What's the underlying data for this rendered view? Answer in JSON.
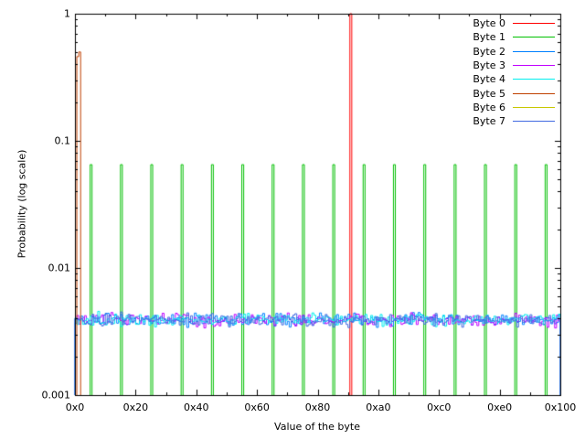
{
  "figure": {
    "background": "#ffffff",
    "border_color": "#000000",
    "text_color": "#000000"
  },
  "chart_data": {
    "type": "line",
    "style": "histogram-steps",
    "title": "",
    "xlabel": "Value of the byte",
    "ylabel": "Probability (log scale)",
    "x_range": [
      0,
      256
    ],
    "y_scale": "log",
    "y_range": [
      0.001,
      1
    ],
    "grid": "off",
    "legend_position": "top-right-inside",
    "xticks": [
      {
        "label": "0x0",
        "v": 0
      },
      {
        "label": "0x20",
        "v": 32
      },
      {
        "label": "0x40",
        "v": 64
      },
      {
        "label": "0x60",
        "v": 96
      },
      {
        "label": "0x80",
        "v": 128
      },
      {
        "label": "0xa0",
        "v": 160
      },
      {
        "label": "0xc0",
        "v": 192
      },
      {
        "label": "0xe0",
        "v": 224
      },
      {
        "label": "0x100",
        "v": 256
      }
    ],
    "x_minor_tick_step": 16,
    "yticks": [
      {
        "label": "1",
        "p": 1
      },
      {
        "label": "0.1",
        "p": 0.1
      },
      {
        "label": "0.01",
        "p": 0.01
      },
      {
        "label": "0.001",
        "p": 0.001
      }
    ],
    "y_minor_ticks": "log decades 2-9",
    "series": [
      {
        "name": "Byte 0",
        "color": "#ff0000",
        "pattern": {
          "type": "spike",
          "value": 145,
          "value_hex": "0x91",
          "probability": 1.0
        }
      },
      {
        "name": "Byte 1",
        "color": "#00c000",
        "pattern": {
          "type": "spike-train",
          "start_value": 8,
          "step": 16,
          "count": 16,
          "probability": 0.065
        }
      },
      {
        "name": "Byte 2",
        "color": "#0080ff",
        "pattern": {
          "type": "uniform-noise",
          "probability": 0.0039,
          "jitter_decades": 0.05
        }
      },
      {
        "name": "Byte 3",
        "color": "#c000ff",
        "pattern": {
          "type": "uniform-noise",
          "probability": 0.0039,
          "jitter_decades": 0.05
        }
      },
      {
        "name": "Byte 4",
        "color": "#00eeee",
        "pattern": {
          "type": "uniform-noise",
          "probability": 0.0039,
          "jitter_decades": 0.05
        }
      },
      {
        "name": "Byte 5",
        "color": "#c04000",
        "pattern": {
          "type": "steps",
          "bins": [
            {
              "value": 1,
              "probability": 0.46
            },
            {
              "value": 2,
              "probability": 0.5
            }
          ]
        }
      },
      {
        "name": "Byte 6",
        "color": "#c8c800",
        "pattern": {
          "type": "not-visible"
        }
      },
      {
        "name": "Byte 7",
        "color": "#4169e1",
        "pattern": {
          "type": "uniform-noise",
          "probability": 0.0039,
          "jitter_decades": 0.05
        }
      }
    ]
  }
}
